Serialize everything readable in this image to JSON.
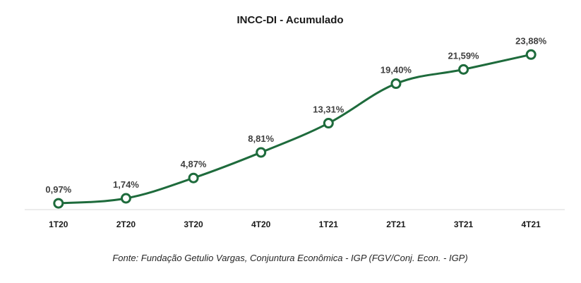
{
  "chart_data": {
    "type": "line",
    "title": "INCC-DI - Acumulado",
    "categories": [
      "1T20",
      "2T20",
      "3T20",
      "4T20",
      "1T21",
      "2T21",
      "3T21",
      "4T21"
    ],
    "values": [
      0.97,
      1.74,
      4.87,
      8.81,
      13.31,
      19.4,
      21.59,
      23.88
    ],
    "data_labels": [
      "0,97%",
      "1,74%",
      "4,87%",
      "8,81%",
      "13,31%",
      "19,40%",
      "21,59%",
      "23,88%"
    ],
    "xlabel": "",
    "ylabel": "",
    "ylim": [
      0,
      26
    ],
    "grid": false,
    "legend": "none",
    "line_color": "#1e6b3c",
    "marker_fill": "#ffffff",
    "axis_color": "#d9d9d9",
    "source": "Fonte: Fundação Getulio Vargas, Conjuntura Econômica - IGP (FGV/Conj. Econ. - IGP)"
  }
}
